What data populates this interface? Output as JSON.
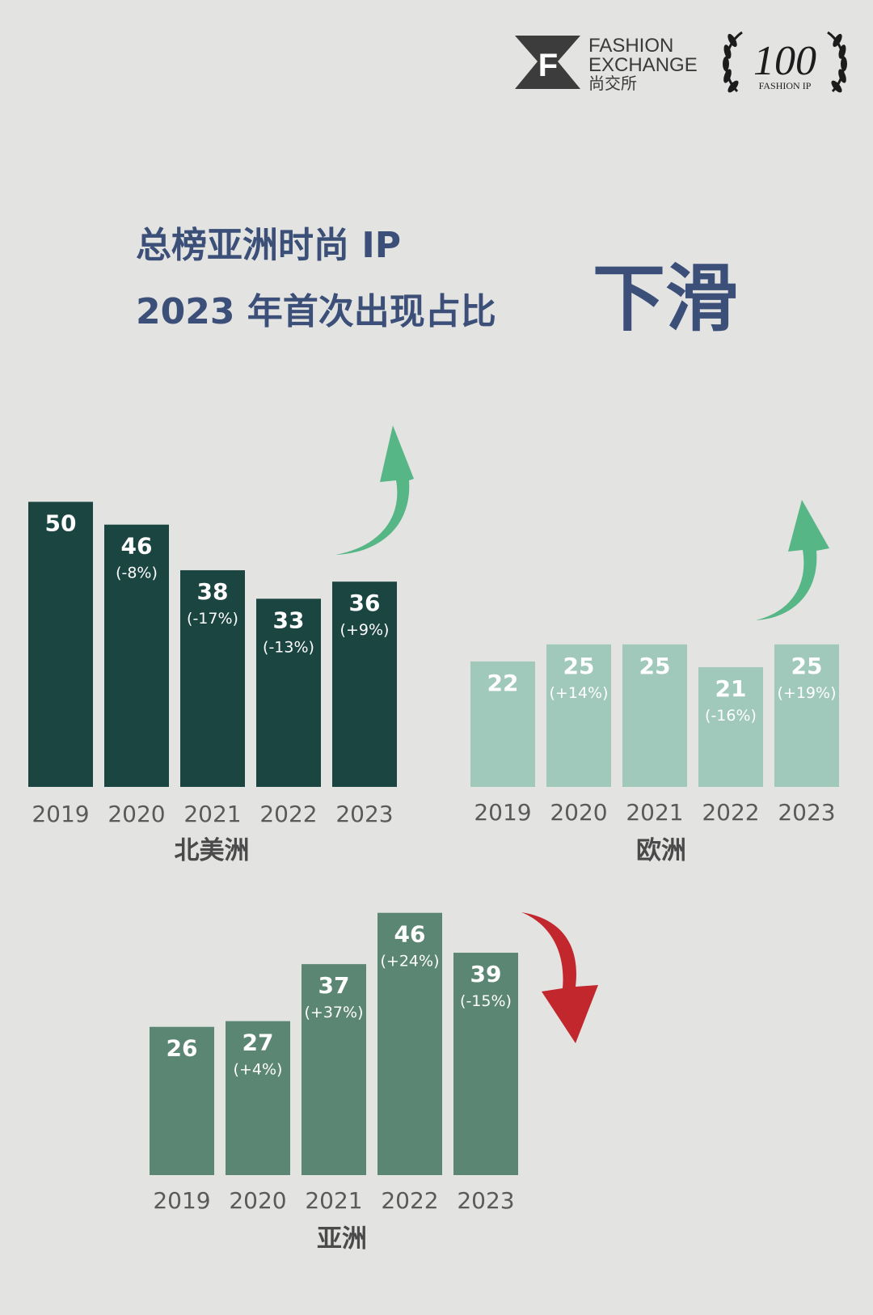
{
  "brand": {
    "logo_letter": "F",
    "logo_line1": "FASHION",
    "logo_line2": "EXCHANGE",
    "logo_line3": "尚交所",
    "seal_number": "100",
    "seal_caption": "FASHION IP"
  },
  "headline": {
    "line1": "总榜亚洲时尚 IP",
    "line2": "2023 年首次出现占比",
    "emphasis": "下滑",
    "color": "#3b4f78"
  },
  "colors": {
    "north_america_bar": "#1b4541",
    "europe_bar": "#a0c9bb",
    "asia_bar": "#5b8673",
    "up_arrow": "#56b685",
    "down_arrow": "#c1272d"
  },
  "chart_data": [
    {
      "type": "bar",
      "title": "北美洲",
      "categories": [
        "2019",
        "2020",
        "2021",
        "2022",
        "2023"
      ],
      "values": [
        50,
        46,
        38,
        33,
        36
      ],
      "changes": [
        "",
        "(-8%)",
        "(-17%)",
        "(-13%)",
        "(+9%)"
      ],
      "trend": "up",
      "ylim": [
        0,
        50
      ]
    },
    {
      "type": "bar",
      "title": "欧洲",
      "categories": [
        "2019",
        "2020",
        "2021",
        "2022",
        "2023"
      ],
      "values": [
        22,
        25,
        25,
        21,
        25
      ],
      "changes": [
        "",
        "(+14%)",
        "",
        "(-16%)",
        "(+19%)"
      ],
      "trend": "up",
      "ylim": [
        0,
        50
      ]
    },
    {
      "type": "bar",
      "title": "亚洲",
      "categories": [
        "2019",
        "2020",
        "2021",
        "2022",
        "2023"
      ],
      "values": [
        26,
        27,
        37,
        46,
        39
      ],
      "changes": [
        "",
        "(+4%)",
        "(+37%)",
        "(+24%)",
        "(-15%)"
      ],
      "trend": "down",
      "ylim": [
        0,
        50
      ]
    }
  ]
}
